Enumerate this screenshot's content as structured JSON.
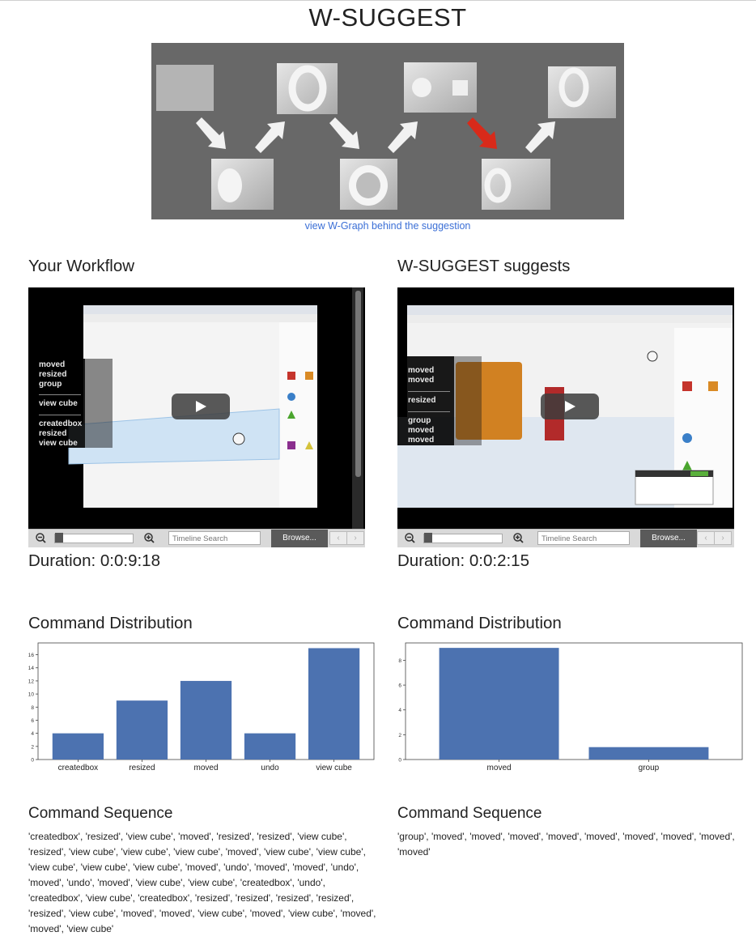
{
  "page": {
    "title": "W-SUGGEST",
    "graph_link": "view W-Graph behind the suggestion"
  },
  "left": {
    "heading": "Your Workflow",
    "video_overlay": [
      "moved",
      "resized",
      "group",
      "view cube",
      "createdbox",
      "resized",
      "view cube"
    ],
    "timeline_placeholder": "Timeline Search",
    "browse_label": "Browse...",
    "duration": "Duration: 0:0:9:18",
    "dist_heading": "Command Distribution",
    "seq_heading": "Command Sequence",
    "sequence": "'createdbox', 'resized', 'view cube', 'moved', 'resized', 'resized', 'view cube', 'resized', 'view cube', 'view cube', 'view cube', 'moved', 'view cube', 'view cube', 'view cube', 'view cube', 'view cube', 'moved', 'undo', 'moved', 'moved', 'undo', 'moved', 'undo', 'moved', 'view cube', 'view cube', 'createdbox', 'undo', 'createdbox', 'view cube', 'createdbox', 'resized', 'resized', 'resized', 'resized', 'resized', 'view cube', 'moved', 'moved', 'view cube', 'moved', 'view cube', 'moved', 'moved', 'view cube'"
  },
  "right": {
    "heading": "W-SUGGEST suggests",
    "video_overlay": [
      "moved",
      "moved",
      "resized",
      "group",
      "moved",
      "moved"
    ],
    "timeline_placeholder": "Timeline Search",
    "browse_label": "Browse...",
    "duration": "Duration: 0:0:2:15",
    "dist_heading": "Command Distribution",
    "seq_heading": "Command Sequence",
    "sequence": "'group', 'moved', 'moved', 'moved', 'moved', 'moved', 'moved', 'moved', 'moved', 'moved'"
  },
  "chart_data": [
    {
      "type": "bar",
      "categories": [
        "createdbox",
        "resized",
        "moved",
        "undo",
        "view cube"
      ],
      "values": [
        4,
        9,
        12,
        4,
        17
      ],
      "ylim": [
        0,
        17.8
      ],
      "yticks": [
        0,
        2,
        4,
        6,
        8,
        10,
        12,
        14,
        16
      ],
      "color": "#4c72b0"
    },
    {
      "type": "bar",
      "categories": [
        "moved",
        "group"
      ],
      "values": [
        9,
        1
      ],
      "ylim": [
        0,
        9.4
      ],
      "yticks": [
        0,
        2,
        4,
        6,
        8
      ],
      "color": "#4c72b0"
    }
  ]
}
